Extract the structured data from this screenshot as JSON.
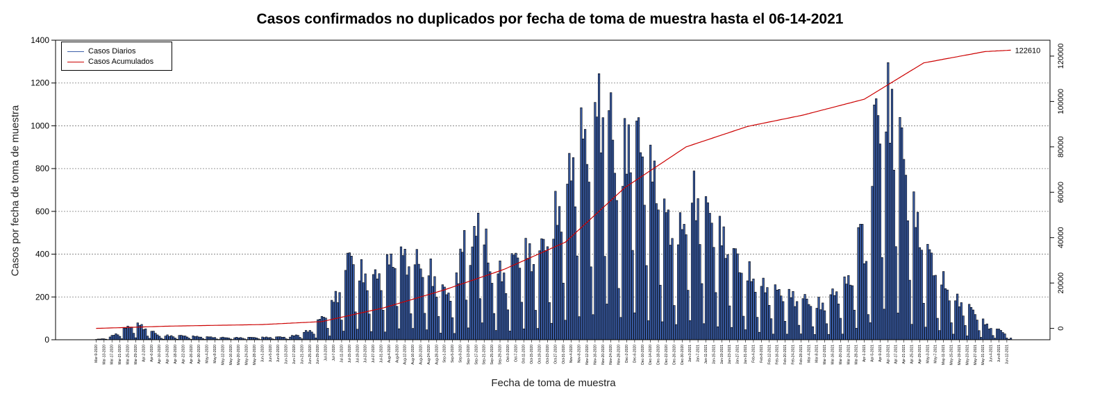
{
  "chart_data": {
    "type": "bar",
    "title": "Casos confirmados no duplicados por fecha de toma de muestra hasta el 06-14-2021",
    "xlabel": "Fecha de toma de muestra",
    "ylabel": "Casos por fecha de toma de muestra",
    "ylim": [
      0,
      1400
    ],
    "y_ticks": [
      0,
      200,
      400,
      600,
      800,
      1000,
      1200,
      1400
    ],
    "y2lim": [
      -5000,
      127000
    ],
    "y2_ticks": [
      0,
      20000,
      40000,
      60000,
      80000,
      100000,
      120000
    ],
    "grid": "horizontal-dotted",
    "legend_position": "top-left",
    "x_range": [
      "2020-03-09",
      "2021-06-14"
    ],
    "tick_every_days": 4,
    "tick_label_format": "Mon-D-YYYY",
    "final_cumulative_label": "122610",
    "series": [
      {
        "name": "Casos Diarios",
        "type": "bar",
        "color": "#3b5ea8",
        "daily_profile": [
          [
            "2020-03-09",
            2
          ],
          [
            "2020-03-15",
            8
          ],
          [
            "2020-03-22",
            45
          ],
          [
            "2020-03-28",
            80
          ],
          [
            "2020-04-02",
            65
          ],
          [
            "2020-04-10",
            20
          ],
          [
            "2020-04-20",
            20
          ],
          [
            "2020-05-01",
            15
          ],
          [
            "2020-05-15",
            10
          ],
          [
            "2020-06-01",
            12
          ],
          [
            "2020-06-15",
            15
          ],
          [
            "2020-06-25",
            45
          ],
          [
            "2020-07-05",
            150
          ],
          [
            "2020-07-12",
            300
          ],
          [
            "2020-07-16",
            450
          ],
          [
            "2020-07-20",
            330
          ],
          [
            "2020-07-28",
            300
          ],
          [
            "2020-08-08",
            420
          ],
          [
            "2020-08-18",
            380
          ],
          [
            "2020-08-25",
            330
          ],
          [
            "2020-09-02",
            220
          ],
          [
            "2020-09-08",
            300
          ],
          [
            "2020-09-11",
            610
          ],
          [
            "2020-09-14",
            340
          ],
          [
            "2020-09-18",
            690
          ],
          [
            "2020-09-24",
            340
          ],
          [
            "2020-10-01",
            320
          ],
          [
            "2020-10-10",
            450
          ],
          [
            "2020-10-18",
            400
          ],
          [
            "2020-10-25",
            560
          ],
          [
            "2020-11-02",
            740
          ],
          [
            "2020-11-08",
            1020
          ],
          [
            "2020-11-14",
            900
          ],
          [
            "2020-11-18",
            1180
          ],
          [
            "2020-11-22",
            1230
          ],
          [
            "2020-11-28",
            700
          ],
          [
            "2020-12-04",
            1100
          ],
          [
            "2020-12-10",
            900
          ],
          [
            "2020-12-16",
            800
          ],
          [
            "2020-12-22",
            600
          ],
          [
            "2020-12-28",
            500
          ],
          [
            "2021-01-04",
            700
          ],
          [
            "2021-01-10",
            650
          ],
          [
            "2021-01-16",
            560
          ],
          [
            "2021-01-22",
            470
          ],
          [
            "2021-01-30",
            350
          ],
          [
            "2021-02-08",
            260
          ],
          [
            "2021-02-18",
            230
          ],
          [
            "2021-03-01",
            200
          ],
          [
            "2021-03-10",
            170
          ],
          [
            "2021-03-20",
            250
          ],
          [
            "2021-03-26",
            310
          ],
          [
            "2021-03-30",
            560
          ],
          [
            "2021-04-03",
            380
          ],
          [
            "2021-04-07",
            1190
          ],
          [
            "2021-04-11",
            1060
          ],
          [
            "2021-04-15",
            1200
          ],
          [
            "2021-04-19",
            1000
          ],
          [
            "2021-04-24",
            700
          ],
          [
            "2021-04-30",
            500
          ],
          [
            "2021-05-08",
            330
          ],
          [
            "2021-05-16",
            200
          ],
          [
            "2021-05-25",
            150
          ],
          [
            "2021-06-02",
            70
          ],
          [
            "2021-06-10",
            40
          ],
          [
            "2021-06-14",
            10
          ]
        ]
      },
      {
        "name": "Casos Acumulados",
        "type": "line",
        "color": "#cc0000",
        "profile": [
          [
            "2020-03-09",
            0
          ],
          [
            "2020-04-15",
            1000
          ],
          [
            "2020-06-01",
            1700
          ],
          [
            "2020-07-01",
            3000
          ],
          [
            "2020-08-01",
            9000
          ],
          [
            "2020-09-01",
            17000
          ],
          [
            "2020-10-01",
            26000
          ],
          [
            "2020-11-01",
            38000
          ],
          [
            "2020-12-01",
            62000
          ],
          [
            "2021-01-01",
            80000
          ],
          [
            "2021-02-01",
            89000
          ],
          [
            "2021-03-01",
            94000
          ],
          [
            "2021-04-01",
            101000
          ],
          [
            "2021-05-01",
            117000
          ],
          [
            "2021-06-01",
            122000
          ],
          [
            "2021-06-14",
            122610
          ]
        ]
      }
    ]
  }
}
